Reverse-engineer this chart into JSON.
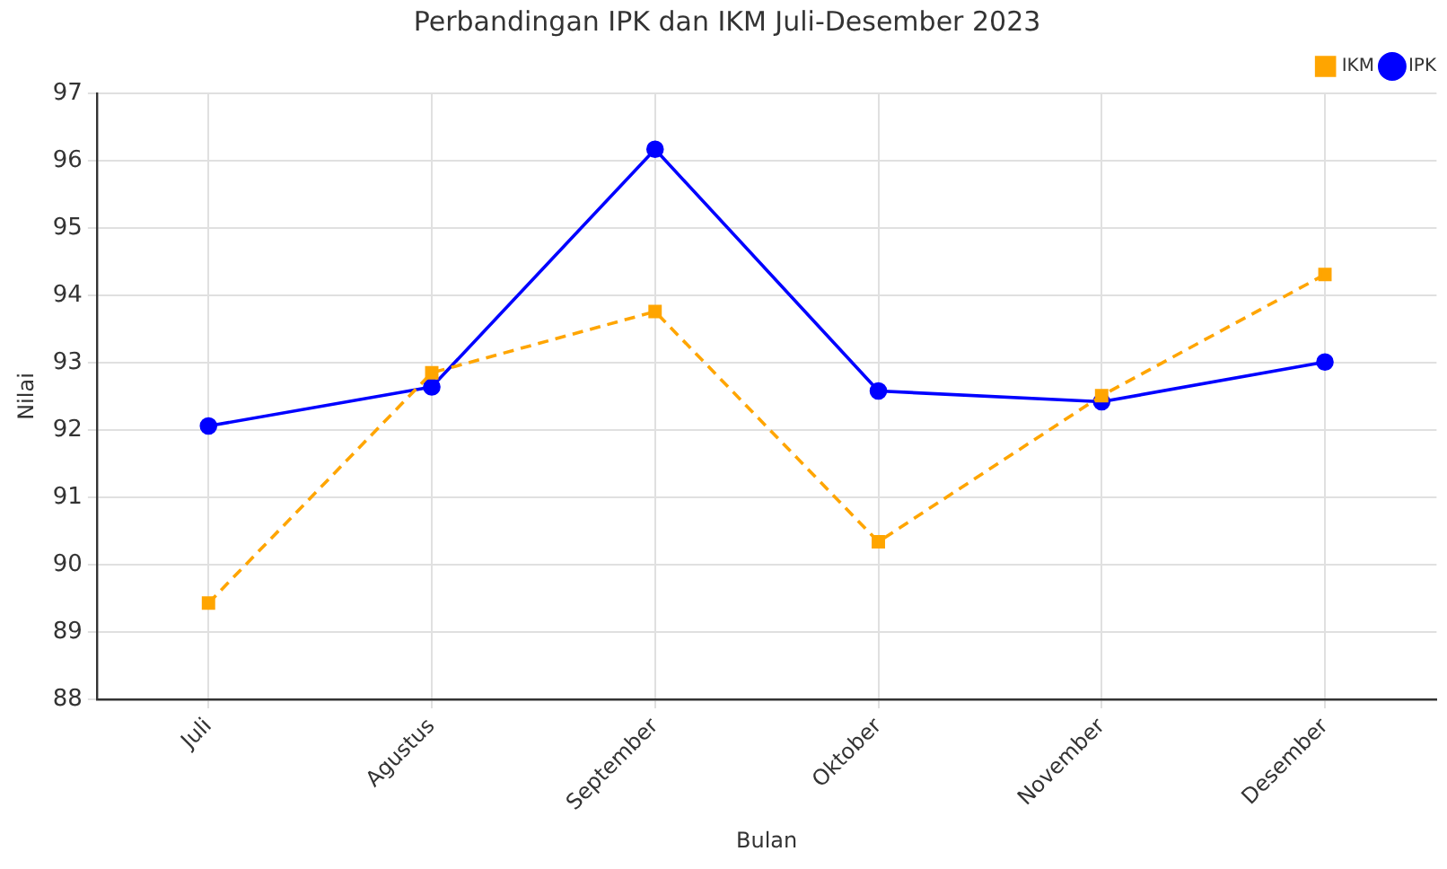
{
  "chart_data": {
    "type": "line",
    "title": "Perbandingan IPK dan IKM Juli-Desember 2023",
    "xlabel": "Bulan",
    "ylabel": "Nilai",
    "categories": [
      "Juli",
      "Agustus",
      "September",
      "Oktober",
      "November",
      "Desember"
    ],
    "series": [
      {
        "name": "IPK",
        "color": "#0000ff",
        "values": [
          92.06,
          92.64,
          96.17,
          92.58,
          92.42,
          93.01
        ],
        "marker": "circle",
        "line_style": "solid"
      },
      {
        "name": "IKM",
        "color": "#ffa500",
        "values": [
          89.43,
          92.85,
          93.76,
          90.34,
          92.51,
          94.31
        ],
        "marker": "square",
        "line_style": "dashed"
      }
    ],
    "ylim": [
      88,
      97
    ],
    "yticks": [
      88,
      89,
      90,
      91,
      92,
      93,
      94,
      95,
      96,
      97
    ],
    "grid": true,
    "legend": "top right"
  }
}
